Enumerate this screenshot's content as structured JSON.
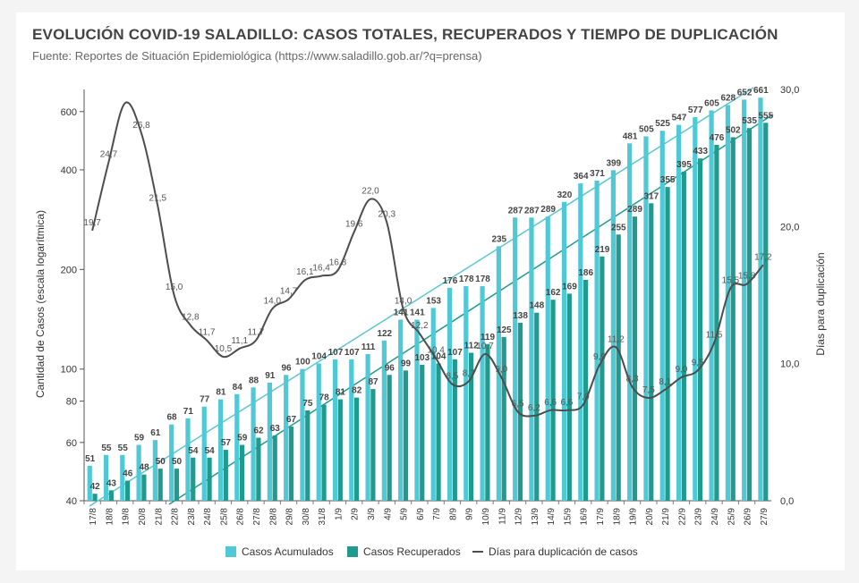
{
  "header": {
    "title": "EVOLUCIÓN COVID-19 SALADILLO: CASOS TOTALES, RECUPERADOS Y TIEMPO DE DUPLICACIÓN",
    "subtitle": "Fuente: Reportes de Situación Epidemiológica (https://www.saladillo.gob.ar/?q=prensa)"
  },
  "colors": {
    "acumulados": "#4fc9d6",
    "recuperados": "#1f9a8c",
    "duplicacion": "#4d4d4d",
    "trend_acumulados": "#5cc6d4",
    "trend_recuperados": "#1f9a8c"
  },
  "chart_data": {
    "type": "bar",
    "title": "EVOLUCIÓN COVID-19 SALADILLO: CASOS TOTALES, RECUPERADOS Y TIEMPO DE DUPLICACIÓN",
    "ylabel": "Cantidad de Casos (escala logarítmica)",
    "y2label": "Días para duplicación",
    "y_scale": "log",
    "ylim": [
      40,
      700
    ],
    "y2lim": [
      0,
      30
    ],
    "y_ticks": [
      "40",
      "60",
      "80",
      "100",
      "200",
      "400",
      "600"
    ],
    "y2_ticks": [
      "0,0",
      "10,0",
      "20,0",
      "30,0"
    ],
    "legend_position": "bottom",
    "categories": [
      "17/8",
      "18/8",
      "19/8",
      "20/8",
      "21/8",
      "22/8",
      "23/8",
      "24/8",
      "25/8",
      "26/8",
      "27/8",
      "28/8",
      "29/8",
      "30/8",
      "31/8",
      "1/9",
      "2/9",
      "3/9",
      "4/9",
      "5/9",
      "6/9",
      "7/9",
      "8/9",
      "9/9",
      "10/9",
      "11/9",
      "12/9",
      "13/9",
      "14/9",
      "15/9",
      "16/9",
      "17/9",
      "18/9",
      "19/9",
      "20/9",
      "21/9",
      "22/9",
      "23/9",
      "24/9",
      "25/9",
      "26/9",
      "27/9"
    ],
    "series": [
      {
        "name": "Casos Acumulados",
        "values": [
          51,
          55,
          55,
          59,
          61,
          68,
          71,
          77,
          81,
          84,
          88,
          91,
          96,
          100,
          104,
          107,
          107,
          111,
          122,
          141,
          141,
          153,
          176,
          178,
          178,
          235,
          287,
          287,
          289,
          320,
          364,
          371,
          399,
          481,
          505,
          525,
          547,
          577,
          605,
          628,
          652,
          661
        ]
      },
      {
        "name": "Casos Recuperados",
        "values": [
          42,
          43,
          46,
          48,
          50,
          50,
          54,
          54,
          57,
          59,
          62,
          63,
          67,
          75,
          78,
          81,
          82,
          87,
          96,
          99,
          103,
          104,
          107,
          112,
          119,
          125,
          138,
          148,
          162,
          169,
          186,
          219,
          255,
          289,
          317,
          355,
          395,
          433,
          476,
          502,
          535,
          555
        ]
      },
      {
        "name": "Días para duplicación de casos",
        "values": [
          19.7,
          24.7,
          29.0,
          26.8,
          21.5,
          15.0,
          12.8,
          11.7,
          10.5,
          11.1,
          11.7,
          14.0,
          14.7,
          16.1,
          16.4,
          16.8,
          19.6,
          22.0,
          20.3,
          14.0,
          12.2,
          10.4,
          8.5,
          8.7,
          10.7,
          9.0,
          6.5,
          6.2,
          6.6,
          6.6,
          7.0,
          9.9,
          11.2,
          8.3,
          7.5,
          8.1,
          9.0,
          9.5,
          11.5,
          15.5,
          15.8,
          17.2
        ]
      }
    ],
    "bar_labels_acumulados": [
      "51",
      "55",
      "55",
      "59",
      "61",
      "68",
      "71",
      "77",
      "81",
      "84",
      "88",
      "91",
      "96",
      "100",
      "104",
      "107",
      "107",
      "111",
      "122",
      "141",
      "141",
      "153",
      "176",
      "178",
      "178",
      "235",
      "287",
      "287",
      "289",
      "320",
      "364",
      "371",
      "399",
      "481",
      "505",
      "525",
      "547",
      "577",
      "605",
      "628",
      "652",
      "661"
    ],
    "bar_labels_recuperados": [
      "42",
      "43",
      "46",
      "48",
      "50",
      "50",
      "54",
      "54",
      "57",
      "59",
      "62",
      "63",
      "67",
      "75",
      "78",
      "81",
      "82",
      "87",
      "96",
      "99",
      "103",
      "104",
      "107",
      "112",
      "119",
      "125",
      "138",
      "148",
      "162",
      "169",
      "186",
      "219",
      "255",
      "289",
      "317",
      "355",
      "395",
      "433",
      "476",
      "502",
      "535",
      "555"
    ],
    "line_labels": [
      "19,7",
      "24,7",
      "",
      "26,8",
      "21,5",
      "15,0",
      "12,8",
      "11,7",
      "10,5",
      "11,1",
      "11,7",
      "14,0",
      "14,7",
      "16,1",
      "16,4",
      "16,8",
      "19,6",
      "22,0",
      "20,3",
      "14,0",
      "12,2",
      "10,4",
      "8,5",
      "8,7",
      "10,7",
      "9,0",
      "6,5",
      "6,2",
      "6,6",
      "6,6",
      "7,0",
      "9,9",
      "11,2",
      "8,3",
      "7,5",
      "8,1",
      "9,0",
      "9,5",
      "11,5",
      "15,5",
      "15,8",
      "17,2"
    ]
  }
}
